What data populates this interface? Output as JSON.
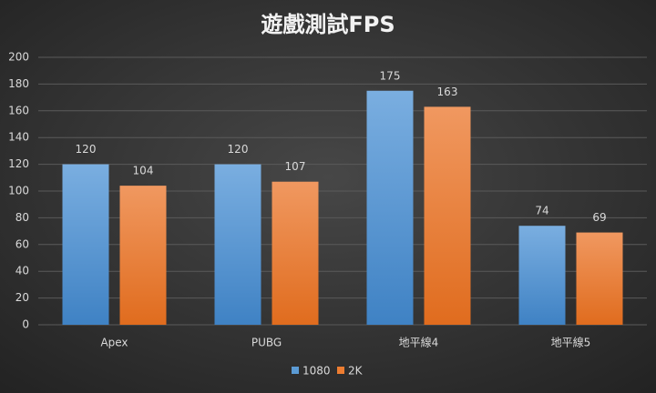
{
  "chart_data": {
    "type": "bar",
    "title": "遊戲測試FPS",
    "categories": [
      "Apex",
      "PUBG",
      "地平線4",
      "地平線5"
    ],
    "series": [
      {
        "name": "1080",
        "color": "#5b9bd5",
        "values": [
          120,
          120,
          175,
          74
        ]
      },
      {
        "name": "2K",
        "color": "#ed7d31",
        "values": [
          104,
          107,
          163,
          69
        ]
      }
    ],
    "ylim": [
      0,
      200
    ],
    "yticks": [
      0,
      20,
      40,
      60,
      80,
      100,
      120,
      140,
      160,
      180,
      200
    ],
    "grid": true,
    "legend": "bottom"
  }
}
